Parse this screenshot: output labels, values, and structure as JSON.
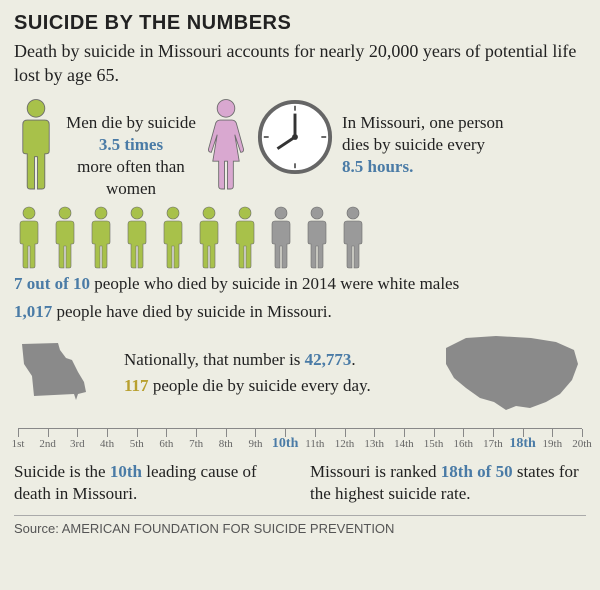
{
  "title": "SUICIDE BY THE NUMBERS",
  "subtitle": "Death by suicide in Missouri accounts for nearly 20,000 years of potential life lost by age 65.",
  "row1": {
    "left_pre": "Men die by suicide",
    "left_stat": "3.5 times",
    "left_post": "more often than women",
    "right_pre": "In Missouri, one person dies by suicide every ",
    "right_stat": "8.5 hours."
  },
  "ten_row": {
    "stat": "7 out of 10",
    "rest": " people who died by suicide in 2014 were white males"
  },
  "mo_line": {
    "stat": "1,017",
    "rest": " people have died by suicide in Missouri."
  },
  "nat_line1_pre": "Nationally, that number is ",
  "nat_line1_stat": "42,773",
  "nat_line1_post": ".",
  "nat_line2_stat": "117",
  "nat_line2_rest": " people die by suicide every day.",
  "ruler": {
    "labels": [
      "1st",
      "2nd",
      "3rd",
      "4th",
      "5th",
      "6th",
      "7th",
      "8th",
      "9th",
      "10th",
      "11th",
      "12th",
      "13th",
      "14th",
      "15th",
      "16th",
      "17th",
      "18th",
      "19th",
      "20th"
    ],
    "highlights": [
      9,
      17
    ]
  },
  "bottom_left_pre": "Suicide is the ",
  "bottom_left_stat": "10th",
  "bottom_left_post": " leading cause of death in Missouri.",
  "bottom_right_pre": "Missouri is ranked ",
  "bottom_right_stat": "18th of 50",
  "bottom_right_post": " states for the highest suicide rate.",
  "source_label": "Source: ",
  "source_name": "AMERICAN FOUNDATION FOR SUICIDE PREVENTION",
  "colors": {
    "green": "#a8c14a",
    "pink": "#d9a8d0",
    "gray": "#9a9a9a",
    "blue": "#4a7ba6",
    "stroke": "#6b6b6b",
    "mapfill": "#8a8a8a"
  },
  "people_row": [
    "green",
    "green",
    "green",
    "green",
    "green",
    "green",
    "green",
    "gray",
    "gray",
    "gray"
  ]
}
